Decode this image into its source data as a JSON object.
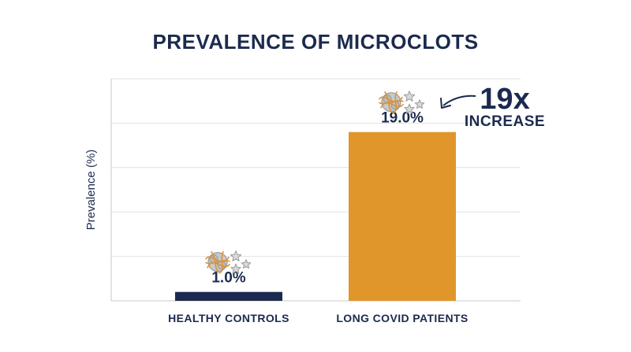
{
  "colors": {
    "navy": "#1b2a4e",
    "orange": "#e0962b",
    "grid": "#e2e2e2",
    "axis": "#c8c8c8",
    "cell_fill": "#d9d9d9",
    "cell_stroke": "#9a9a9a",
    "strand": "#d8943a"
  },
  "icons": [
    "microclot-icon",
    "platelet-icon"
  ],
  "annotation": {
    "multiplier": "19x",
    "text": "INCREASE"
  },
  "chart_data": {
    "type": "bar",
    "title": "PREVALENCE OF MICROCLOTS",
    "xlabel": "",
    "ylabel": "Prevalence (%)",
    "categories": [
      "HEALTHY CONTROLS",
      "LONG COVID PATIENTS"
    ],
    "values": [
      1.0,
      19.0
    ],
    "value_labels": [
      "1.0%",
      "19.0%"
    ],
    "ylim": [
      0,
      25
    ],
    "grid": true,
    "legend": "none"
  }
}
